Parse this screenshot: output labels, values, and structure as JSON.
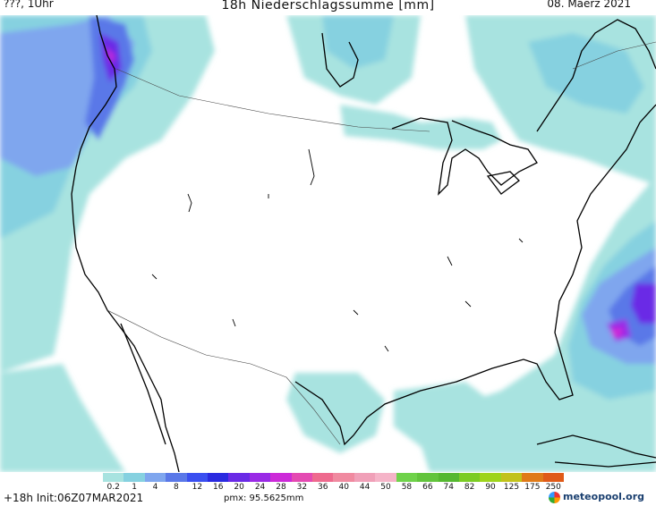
{
  "header": {
    "left": "???, 1Uhr",
    "title": "18h Niederschlagssumme [mm]",
    "date": "08. Maerz 2021"
  },
  "footer": {
    "init": "+18h Init:06Z07MAR2021",
    "pmx": "pmx: 95.5625mm",
    "logo": "meteopool.org"
  },
  "legend": {
    "labels": [
      "0.2",
      "1",
      "4",
      "8",
      "12",
      "16",
      "20",
      "24",
      "28",
      "32",
      "36",
      "40",
      "44",
      "50",
      "58",
      "66",
      "74",
      "82",
      "90",
      "125",
      "175",
      "250"
    ],
    "colors": [
      "#a8e3e0",
      "#86d1e0",
      "#7fa6ee",
      "#5a78e8",
      "#3a4ff0",
      "#2a2ae0",
      "#6a2ae6",
      "#9a2ae6",
      "#cc2ad8",
      "#e44ab2",
      "#ee6a8e",
      "#f08aa0",
      "#f0a0b8",
      "#f5b4c8",
      "#6fd24a",
      "#62c43c",
      "#55b830",
      "#7bcc24",
      "#9ed41c",
      "#c2c21a",
      "#e07a18",
      "#e05a18"
    ]
  }
}
